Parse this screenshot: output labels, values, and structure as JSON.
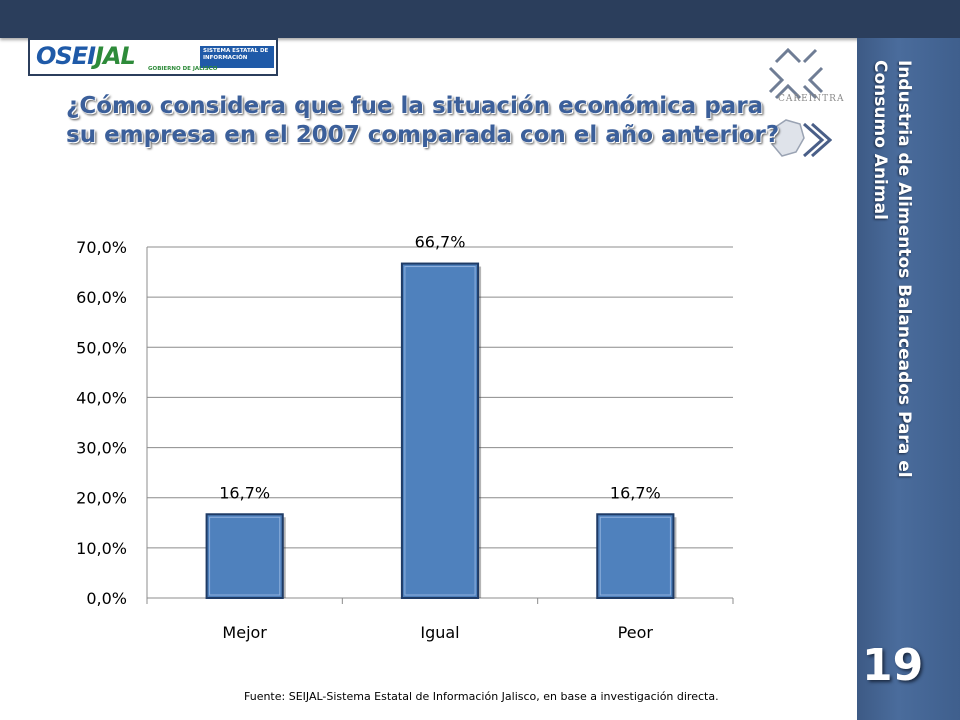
{
  "slide": {
    "side_title": "Industria de Alimentos Balanceados Para el Consumo Animal",
    "slide_number": "19",
    "title": "¿Cómo considera que fue la situación económica para su empresa en el 2007 comparada con el año anterior?",
    "footnote": "Fuente: SEIJAL-Sistema Estatal de Información Jalisco, en base a investigación directa.",
    "logo": {
      "name_a": "OSEI",
      "name_b": "JAL",
      "subtitle": "SISTEMA ESTATAL DE INFORMACIÓN",
      "gob": "GOBIERNO DE JALISCO"
    },
    "partner_logo_text": "CAREINTRA"
  },
  "colors": {
    "bar_fill": "#4f81bd",
    "bar_edge": "#1f3b66",
    "title": "#3b5f9a",
    "side_panel": "#4a6c9c",
    "top_bar": "#2b3e5c"
  },
  "chart_data": {
    "type": "bar",
    "categories": [
      "Mejor",
      "Igual",
      "Peor"
    ],
    "values": [
      16.7,
      66.7,
      16.7
    ],
    "data_labels": [
      "16,7%",
      "66,7%",
      "16,7%"
    ],
    "ylim": [
      0,
      70
    ],
    "yticks": [
      0,
      10,
      20,
      30,
      40,
      50,
      60,
      70
    ],
    "ytick_labels": [
      "0,0%",
      "10,0%",
      "20,0%",
      "30,0%",
      "40,0%",
      "50,0%",
      "60,0%",
      "70,0%"
    ],
    "grid": true,
    "legend": "none"
  }
}
